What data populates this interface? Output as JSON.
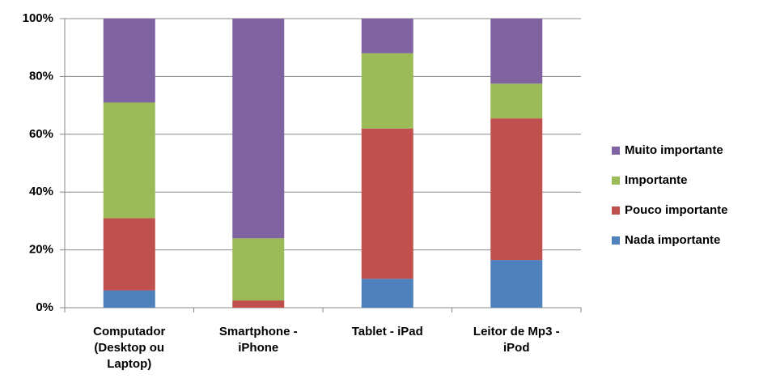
{
  "chart_data": {
    "type": "stacked_bar",
    "categories": [
      "Computador (Desktop ou Laptop)",
      "Smartphone - iPhone",
      "Tablet - iPad",
      "Leitor de Mp3 - iPod"
    ],
    "series": [
      {
        "name": "Nada importante",
        "color": "#4f81bd",
        "values": [
          6,
          0,
          10,
          16.5
        ]
      },
      {
        "name": "Pouco importante",
        "color": "#c0504d",
        "values": [
          25,
          2.5,
          52,
          49
        ]
      },
      {
        "name": "Importante",
        "color": "#9bbb59",
        "values": [
          40,
          21.5,
          26,
          12
        ]
      },
      {
        "name": "Muito importante",
        "color": "#8064a2",
        "values": [
          29,
          76,
          12,
          22.5
        ]
      }
    ],
    "ylim": [
      0,
      100
    ],
    "yticks": [
      {
        "value": 0,
        "label": "0%"
      },
      {
        "value": 20,
        "label": "20%"
      },
      {
        "value": 40,
        "label": "40%"
      },
      {
        "value": 60,
        "label": "60%"
      },
      {
        "value": 80,
        "label": "80%"
      },
      {
        "value": 100,
        "label": "100%"
      }
    ],
    "grid": true,
    "legend": "right"
  }
}
